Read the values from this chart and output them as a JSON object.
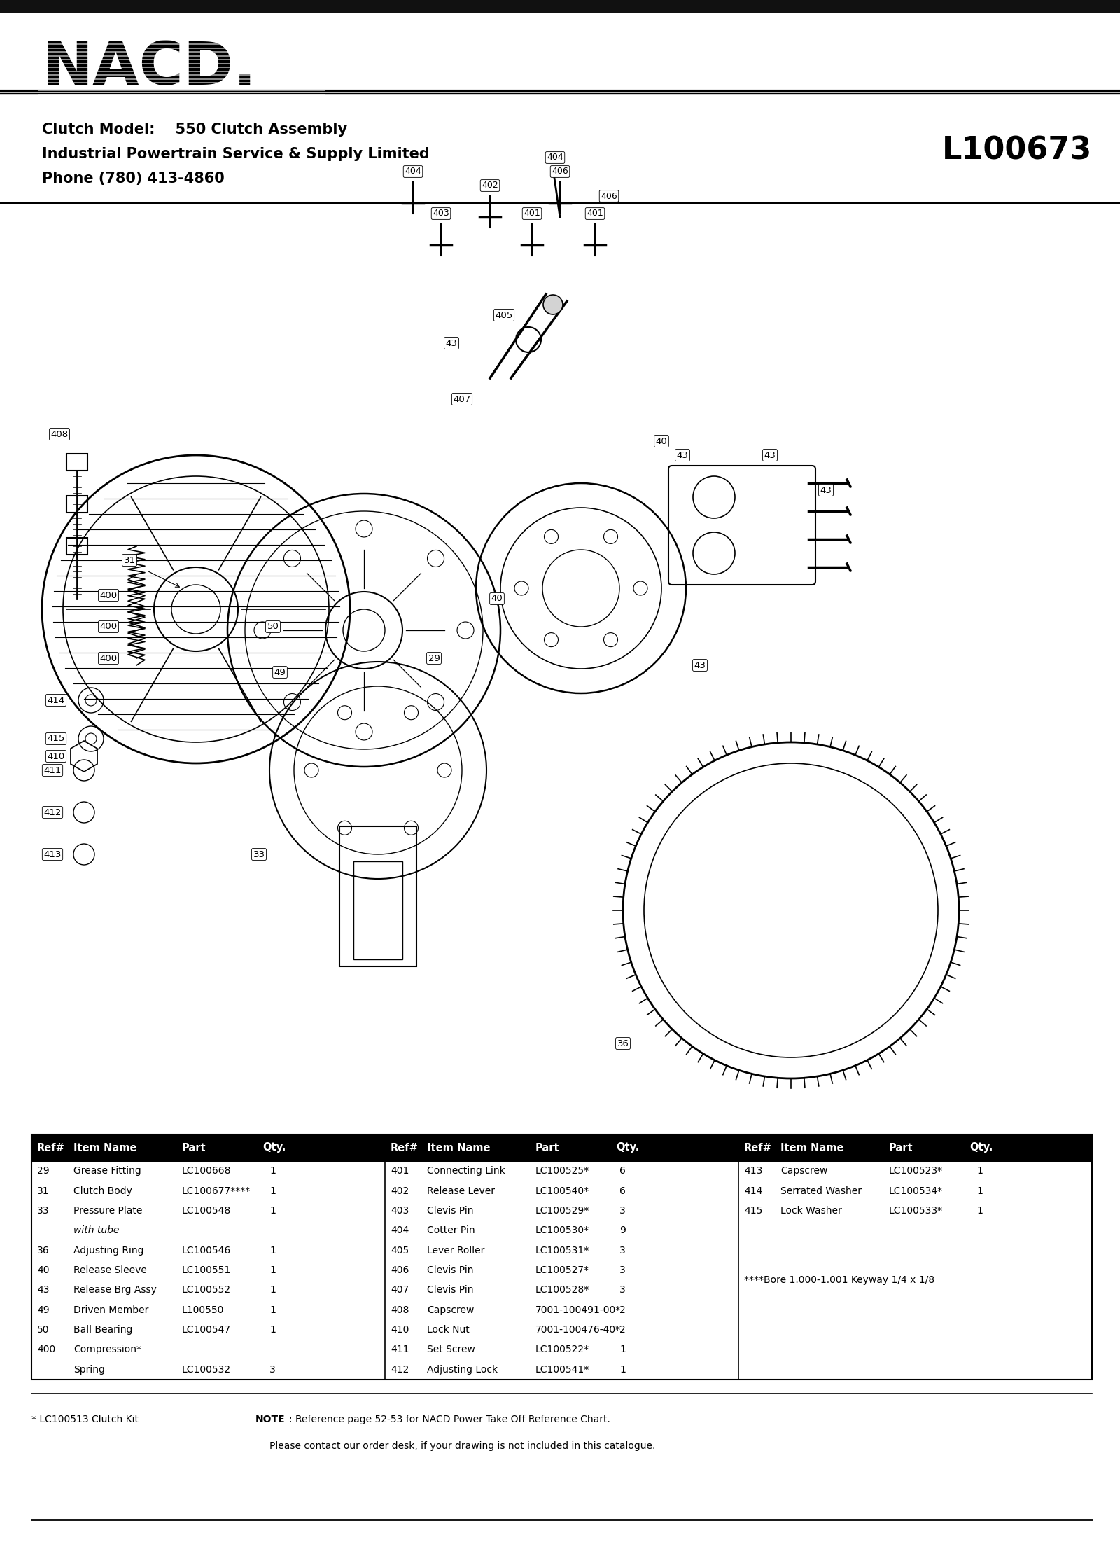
{
  "page_width": 16.0,
  "page_height": 22.12,
  "bg_color": "#ffffff",
  "top_bar_color": "#111111",
  "logo_text": "NACD.",
  "header_line1": "Clutch Model:    550 Clutch Assembly",
  "header_line2": "Industrial Powertrain Service & Supply Limited",
  "header_line3": "Phone (780) 413-4860",
  "doc_number": "L100673",
  "col1_rows": [
    [
      "29",
      "Grease Fitting",
      "LC100668",
      "1"
    ],
    [
      "31",
      "Clutch Body",
      "LC100677****",
      "1"
    ],
    [
      "33",
      "Pressure Plate",
      "LC100548",
      "1"
    ],
    [
      "",
      "with tube",
      "",
      ""
    ],
    [
      "36",
      "Adjusting Ring",
      "LC100546",
      "1"
    ],
    [
      "40",
      "Release Sleeve",
      "LC100551",
      "1"
    ],
    [
      "43",
      "Release Brg Assy",
      "LC100552",
      "1"
    ],
    [
      "49",
      "Driven Member",
      "L100550",
      "1"
    ],
    [
      "50",
      "Ball Bearing",
      "LC100547",
      "1"
    ],
    [
      "400",
      "Compression*",
      "",
      ""
    ],
    [
      "",
      "Spring",
      "LC100532",
      "3"
    ]
  ],
  "col2_rows": [
    [
      "401",
      "Connecting Link",
      "LC100525*",
      "6"
    ],
    [
      "402",
      "Release Lever",
      "LC100540*",
      "6"
    ],
    [
      "403",
      "Clevis Pin",
      "LC100529*",
      "3"
    ],
    [
      "404",
      "Cotter Pin",
      "LC100530*",
      "9"
    ],
    [
      "405",
      "Lever Roller",
      "LC100531*",
      "3"
    ],
    [
      "406",
      "Clevis Pin",
      "LC100527*",
      "3"
    ],
    [
      "407",
      "Clevis Pin",
      "LC100528*",
      "3"
    ],
    [
      "408",
      "Capscrew",
      "7001-100491-00*",
      "2"
    ],
    [
      "410",
      "Lock Nut",
      "7001-100476-40*",
      "2"
    ],
    [
      "411",
      "Set Screw",
      "LC100522*",
      "1"
    ],
    [
      "412",
      "Adjusting Lock",
      "LC100541*",
      "1"
    ]
  ],
  "col3_rows": [
    [
      "413",
      "Capscrew",
      "LC100523*",
      "1"
    ],
    [
      "414",
      "Serrated Washer",
      "LC100534*",
      "1"
    ],
    [
      "415",
      "Lock Washer",
      "LC100533*",
      "1"
    ]
  ],
  "col3_note": "****Bore 1.000-1.001 Keyway 1/4 x 1/8",
  "footer_kit": "* LC100513 Clutch Kit",
  "footer_note1": "NOTE: Reference page 52-53 for NACD Power Take Off Reference Chart.",
  "footer_note2": "Please contact our order desk, if your drawing is not included in this catalogue."
}
